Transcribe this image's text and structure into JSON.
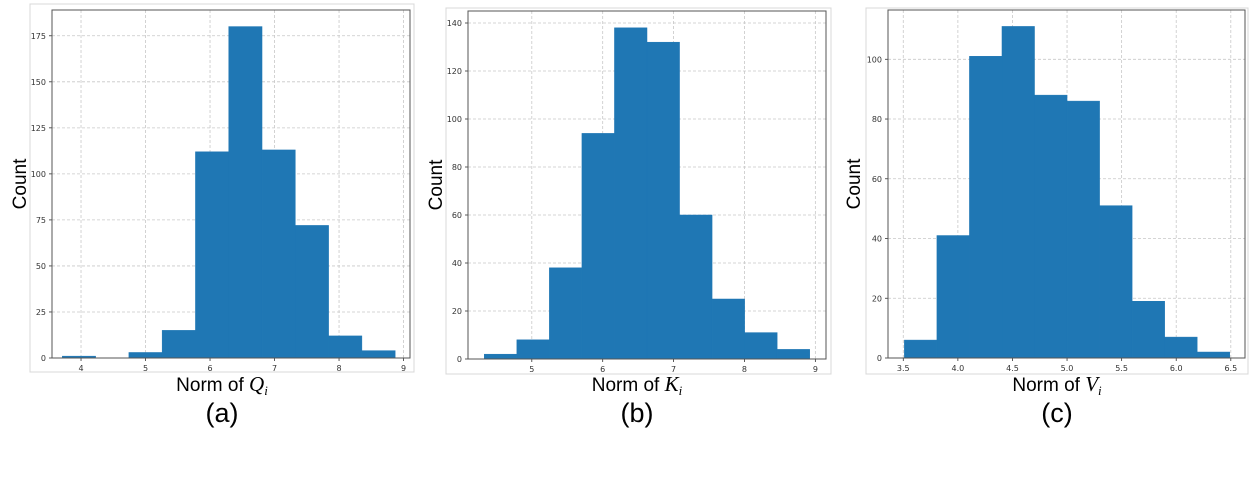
{
  "chart_data": [
    {
      "type": "bar",
      "subtype": "histogram",
      "caption": "(a)",
      "xlabel": "Norm of ",
      "xlabel_symbol": "Q",
      "xlabel_subscript": "i",
      "ylabel": "Count",
      "bin_edges": [
        3.71,
        4.226,
        4.742,
        5.258,
        5.774,
        6.29,
        6.806,
        7.322,
        7.838,
        8.354,
        8.87
      ],
      "values": [
        1,
        0,
        3,
        15,
        112,
        180,
        113,
        72,
        12,
        4
      ],
      "xlim": [
        3.55,
        9.1
      ],
      "ylim": [
        0,
        189
      ],
      "xticks": [
        "4",
        "5",
        "6",
        "7",
        "8",
        "9"
      ],
      "yticks": [
        "0",
        "25",
        "50",
        "75",
        "100",
        "125",
        "150",
        "175"
      ],
      "grid": true,
      "color": "#1f77b4"
    },
    {
      "type": "bar",
      "subtype": "histogram",
      "caption": "(b)",
      "xlabel": "Norm of ",
      "xlabel_symbol": "K",
      "xlabel_subscript": "i",
      "ylabel": "Count",
      "bin_edges": [
        4.33,
        4.789,
        5.248,
        5.707,
        6.166,
        6.625,
        7.084,
        7.543,
        8.002,
        8.461,
        8.92
      ],
      "values": [
        2,
        8,
        38,
        94,
        138,
        132,
        60,
        25,
        11,
        4
      ],
      "xlim": [
        4.1,
        9.15
      ],
      "ylim": [
        0,
        145
      ],
      "xticks": [
        "5",
        "6",
        "7",
        "8",
        "9"
      ],
      "yticks": [
        "0",
        "20",
        "40",
        "60",
        "80",
        "100",
        "120",
        "140"
      ],
      "grid": true,
      "color": "#1f77b4"
    },
    {
      "type": "bar",
      "subtype": "histogram",
      "caption": "(c)",
      "xlabel": "Norm of ",
      "xlabel_symbol": "V",
      "xlabel_subscript": "i",
      "ylabel": "Count",
      "bin_edges": [
        3.51,
        3.808,
        4.106,
        4.404,
        4.702,
        5.0,
        5.298,
        5.596,
        5.894,
        6.192,
        6.49
      ],
      "values": [
        6,
        41,
        101,
        111,
        88,
        86,
        51,
        19,
        7,
        2
      ],
      "xlim": [
        3.36,
        6.63
      ],
      "ylim": [
        0,
        116.5
      ],
      "xticks": [
        "3.5",
        "4.0",
        "4.5",
        "5.0",
        "5.5",
        "6.0",
        "6.5"
      ],
      "yticks": [
        "0",
        "20",
        "40",
        "60",
        "80",
        "100"
      ],
      "grid": true,
      "color": "#1f77b4"
    }
  ]
}
